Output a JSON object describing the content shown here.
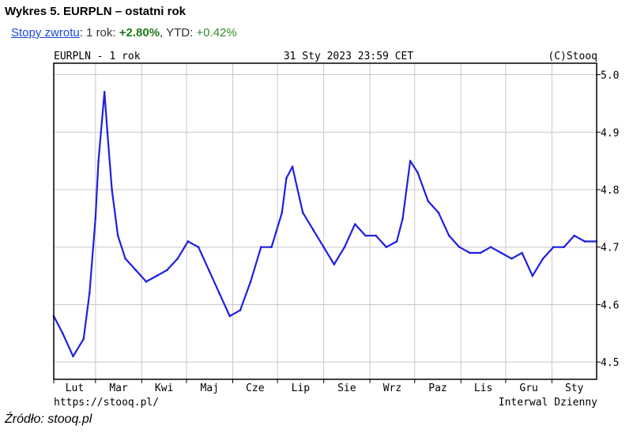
{
  "header": {
    "title": "Wykres 5. EURPLN – ostatni rok",
    "returns_link": "Stopy zwrotu",
    "returns_1y_label": ": 1 rok: ",
    "returns_1y_value": "+2.80%",
    "returns_ytd_label": ", YTD: ",
    "returns_ytd_value": "+0.42%"
  },
  "chart_top": {
    "left": "EURPLN - 1 rok",
    "center": "31 Sty 2023 23:59 CET",
    "right": "(C)Stooq"
  },
  "chart_bottom": {
    "left": "https://stooq.pl/",
    "right": "Interwal Dzienny"
  },
  "source": "Źródło: stooq.pl",
  "colors": {
    "series": "#1f1fe0",
    "grid": "#c8c8c8",
    "frame": "#000000"
  },
  "chart_data": {
    "type": "line",
    "yaxis_position": "right",
    "ylim": [
      4.47,
      5.02
    ],
    "yticks": [
      "4.5",
      "4.6",
      "4.7",
      "4.8",
      "4.9",
      "5.0"
    ],
    "xlim": [
      "2022-02-01",
      "2023-01-31"
    ],
    "xticks": [
      "Lut",
      "Mar",
      "Kwi",
      "Maj",
      "Cze",
      "Lip",
      "Sie",
      "Wrz",
      "Paz",
      "Lis",
      "Gru",
      "Sty"
    ],
    "grid": true,
    "x": [
      "2022-02-01",
      "2022-02-07",
      "2022-02-14",
      "2022-02-21",
      "2022-02-25",
      "2022-03-01",
      "2022-03-03",
      "2022-03-07",
      "2022-03-09",
      "2022-03-12",
      "2022-03-16",
      "2022-03-21",
      "2022-03-28",
      "2022-04-04",
      "2022-04-11",
      "2022-04-18",
      "2022-04-25",
      "2022-05-02",
      "2022-05-09",
      "2022-05-16",
      "2022-05-23",
      "2022-05-30",
      "2022-06-06",
      "2022-06-13",
      "2022-06-20",
      "2022-06-27",
      "2022-07-04",
      "2022-07-07",
      "2022-07-11",
      "2022-07-18",
      "2022-07-25",
      "2022-08-01",
      "2022-08-08",
      "2022-08-15",
      "2022-08-22",
      "2022-08-29",
      "2022-09-05",
      "2022-09-12",
      "2022-09-19",
      "2022-09-23",
      "2022-09-28",
      "2022-10-03",
      "2022-10-10",
      "2022-10-17",
      "2022-10-24",
      "2022-10-31",
      "2022-11-07",
      "2022-11-14",
      "2022-11-21",
      "2022-11-28",
      "2022-12-05",
      "2022-12-12",
      "2022-12-19",
      "2022-12-26",
      "2023-01-02",
      "2023-01-09",
      "2023-01-16",
      "2023-01-23",
      "2023-01-31"
    ],
    "values": [
      4.58,
      4.55,
      4.51,
      4.54,
      4.62,
      4.75,
      4.85,
      4.97,
      4.9,
      4.8,
      4.72,
      4.68,
      4.66,
      4.64,
      4.65,
      4.66,
      4.68,
      4.71,
      4.7,
      4.66,
      4.62,
      4.58,
      4.59,
      4.64,
      4.7,
      4.7,
      4.76,
      4.82,
      4.84,
      4.76,
      4.73,
      4.7,
      4.67,
      4.7,
      4.74,
      4.72,
      4.72,
      4.7,
      4.71,
      4.75,
      4.85,
      4.83,
      4.78,
      4.76,
      4.72,
      4.7,
      4.69,
      4.69,
      4.7,
      4.69,
      4.68,
      4.69,
      4.65,
      4.68,
      4.7,
      4.7,
      4.72,
      4.71,
      4.71
    ]
  }
}
